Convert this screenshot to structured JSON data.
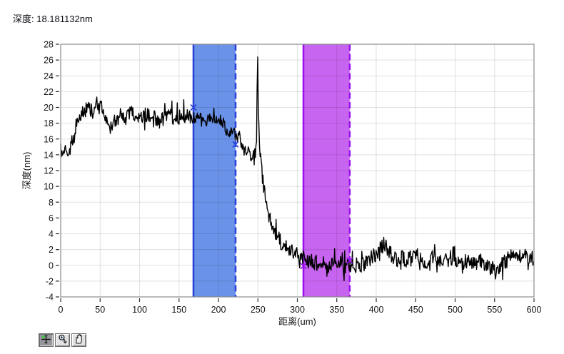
{
  "header": {
    "readout_label": "深度: 18.181132nm"
  },
  "toolbar": {
    "buttons": [
      {
        "name": "cursor-move-tool",
        "icon": "crosshair-icon",
        "active": true
      },
      {
        "name": "zoom-tool",
        "icon": "magnifier-icon",
        "active": false
      },
      {
        "name": "pan-tool",
        "icon": "hand-icon",
        "active": false
      }
    ]
  },
  "chart_data": {
    "type": "line",
    "title": "",
    "xlabel": "距离(um)",
    "ylabel": "深度(nm)",
    "xlim": [
      0,
      600
    ],
    "ylim": [
      -4,
      28
    ],
    "x_ticks": [
      0,
      50,
      100,
      150,
      200,
      250,
      300,
      350,
      400,
      450,
      500,
      550,
      600
    ],
    "y_ticks": [
      -4,
      -2,
      0,
      2,
      4,
      6,
      8,
      10,
      12,
      14,
      16,
      18,
      20,
      22,
      24,
      26,
      28
    ],
    "grid": true,
    "grid_color": "rgba(0,0,0,0.12)",
    "frame_color": "#8a8a8a",
    "tick_color": "#2a2a2a",
    "label_color": "#141414",
    "series": [
      {
        "name": "depth-profile",
        "color": "#000000",
        "description": "noisy depth step profile: plateau ~19nm (0-220um), narrow spike to 27.4nm at 250um, sharp drop to ~0nm baseline (300-600um), small bump ~3nm near 410um",
        "trend_points": [
          [
            0,
            15.0
          ],
          [
            2,
            14.0
          ],
          [
            5,
            14.8
          ],
          [
            8,
            13.9
          ],
          [
            11,
            14.6
          ],
          [
            14,
            15.4
          ],
          [
            18,
            16.6
          ],
          [
            22,
            18.2
          ],
          [
            28,
            19.2
          ],
          [
            34,
            19.9
          ],
          [
            40,
            19.4
          ],
          [
            46,
            19.6
          ],
          [
            52,
            19.9
          ],
          [
            57,
            18.6
          ],
          [
            62,
            17.3
          ],
          [
            66,
            17.9
          ],
          [
            72,
            18.8
          ],
          [
            78,
            18.5
          ],
          [
            84,
            18.7
          ],
          [
            90,
            19.4
          ],
          [
            96,
            18.8
          ],
          [
            102,
            18.5
          ],
          [
            108,
            19.0
          ],
          [
            114,
            19.2
          ],
          [
            120,
            18.4
          ],
          [
            126,
            18.2
          ],
          [
            132,
            18.9
          ],
          [
            138,
            19.3
          ],
          [
            144,
            18.5
          ],
          [
            150,
            18.8
          ],
          [
            156,
            19.1
          ],
          [
            162,
            18.7
          ],
          [
            168,
            18.9
          ],
          [
            174,
            18.8
          ],
          [
            180,
            18.4
          ],
          [
            186,
            18.7
          ],
          [
            192,
            18.2
          ],
          [
            198,
            18.5
          ],
          [
            204,
            17.9
          ],
          [
            210,
            17.4
          ],
          [
            216,
            17.1
          ],
          [
            222,
            16.6
          ],
          [
            228,
            15.8
          ],
          [
            234,
            14.9
          ],
          [
            240,
            14.1
          ],
          [
            244,
            13.5
          ],
          [
            247,
            13.9
          ],
          [
            248.5,
            15.5
          ],
          [
            249.5,
            27.4
          ],
          [
            250.5,
            20.5
          ],
          [
            251.5,
            16.2
          ],
          [
            253,
            13.8
          ],
          [
            255,
            12.2
          ],
          [
            257,
            10.4
          ],
          [
            259,
            9.0
          ],
          [
            261,
            7.8
          ],
          [
            264,
            6.4
          ],
          [
            267,
            5.4
          ],
          [
            270,
            4.6
          ],
          [
            274,
            3.8
          ],
          [
            278,
            3.1
          ],
          [
            283,
            2.6
          ],
          [
            289,
            2.0
          ],
          [
            296,
            1.5
          ],
          [
            304,
            1.0
          ],
          [
            313,
            0.6
          ],
          [
            322,
            0.3
          ],
          [
            331,
            0.4
          ],
          [
            340,
            0.0
          ],
          [
            350,
            0.3
          ],
          [
            360,
            -0.1
          ],
          [
            370,
            0.1
          ],
          [
            380,
            0.0
          ],
          [
            390,
            0.6
          ],
          [
            398,
            1.2
          ],
          [
            405,
            2.2
          ],
          [
            410,
            2.8
          ],
          [
            415,
            2.0
          ],
          [
            420,
            1.2
          ],
          [
            426,
            0.7
          ],
          [
            432,
            1.0
          ],
          [
            438,
            0.7
          ],
          [
            444,
            1.3
          ],
          [
            450,
            1.6
          ],
          [
            456,
            0.9
          ],
          [
            463,
            0.5
          ],
          [
            470,
            0.9
          ],
          [
            477,
            0.5
          ],
          [
            484,
            0.8
          ],
          [
            491,
            0.4
          ],
          [
            498,
            0.7
          ],
          [
            505,
            0.9
          ],
          [
            512,
            0.4
          ],
          [
            519,
            0.7
          ],
          [
            526,
            0.2
          ],
          [
            533,
            0.5
          ],
          [
            540,
            0.0
          ],
          [
            546,
            -0.4
          ],
          [
            552,
            -0.8
          ],
          [
            558,
            0.0
          ],
          [
            564,
            0.5
          ],
          [
            570,
            1.0
          ],
          [
            576,
            1.5
          ],
          [
            582,
            1.2
          ],
          [
            588,
            1.5
          ],
          [
            594,
            1.2
          ],
          [
            600,
            0.9
          ]
        ],
        "noise": {
          "seed": 1234567,
          "step": 0.75,
          "amplitude": 1.0,
          "spike_prob": 0.08,
          "spike_mult": 2.0
        }
      }
    ],
    "regions": [
      {
        "name": "blue-cursor-region",
        "x_start": 168.3,
        "x_end": 221.7,
        "fill": "#6a92e8",
        "edge": "#2742d9",
        "left_style": "solid",
        "right_style": "dashed",
        "markers": [
          [
            168.3,
            20.0
          ],
          [
            221.7,
            15.3
          ]
        ]
      },
      {
        "name": "magenta-cursor-region",
        "x_start": 307.7,
        "x_end": 366.4,
        "fill": "#c865f0",
        "edge": "#9a0ff0",
        "left_style": "solid",
        "right_style": "dashed",
        "markers": [
          [
            307.7,
            -0.1
          ],
          [
            366.4,
            0.6
          ]
        ]
      }
    ]
  }
}
